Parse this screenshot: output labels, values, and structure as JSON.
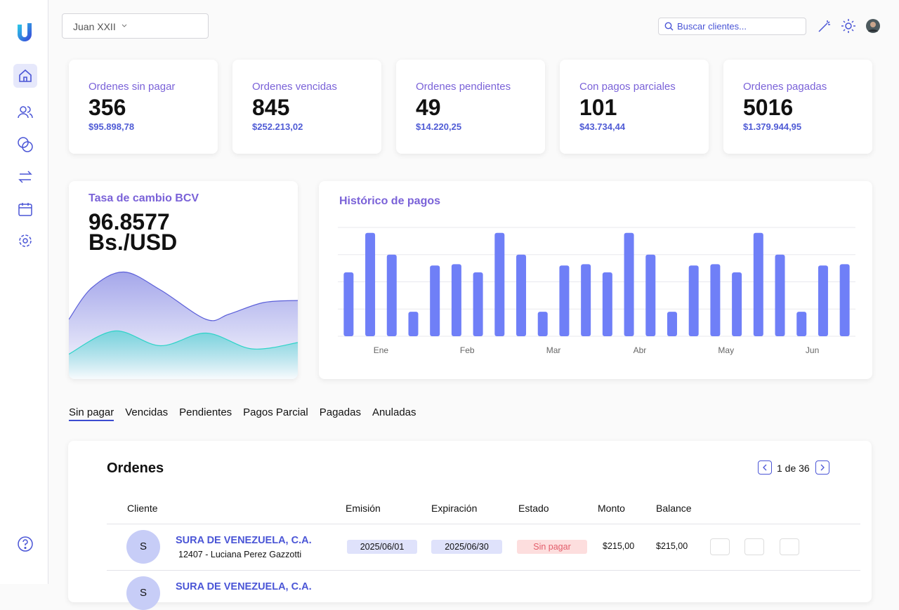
{
  "header": {
    "location": "Juan XXII",
    "search_placeholder": "Buscar clientes..."
  },
  "stats": [
    {
      "label": "Ordenes sin pagar",
      "count": 356,
      "amount": "$95.898,78"
    },
    {
      "label": "Ordenes vencidas",
      "count": 845,
      "amount": "$252.213,02"
    },
    {
      "label": "Ordenes pendientes",
      "count": 49,
      "amount": "$14.220,25"
    },
    {
      "label": "Con pagos parciales",
      "count": 101,
      "amount": "$43.734,44"
    },
    {
      "label": "Ordenes pagadas",
      "count": 5016,
      "amount": "$1.379.944,95"
    }
  ],
  "chart_data": [
    {
      "type": "area",
      "title": "Tasa de cambio BCV",
      "value": "96.8577",
      "unit": "Bs./USD",
      "xlim": [
        0,
        10
      ],
      "ylim": [
        0,
        100
      ],
      "series": [
        {
          "color": "#5b5fd9",
          "x": [
            0,
            1,
            2.4,
            4,
            6,
            7,
            8.5,
            10
          ],
          "values": [
            50,
            80,
            95,
            78,
            50,
            55,
            66,
            68
          ]
        },
        {
          "color": "#2ed3c8",
          "x": [
            0,
            2,
            4,
            6,
            8,
            10
          ],
          "values": [
            17,
            39,
            25,
            37,
            22,
            28
          ]
        }
      ]
    },
    {
      "type": "bar",
      "title": "Histórico de pagos",
      "categories": [
        null,
        "Ene",
        null,
        null,
        null,
        "Feb",
        null,
        null,
        null,
        "Mar",
        null,
        null,
        null,
        "Abr",
        null,
        null,
        null,
        "May",
        null,
        null,
        null,
        "Jun",
        null,
        null
      ],
      "values": [
        2.35,
        3.8,
        3.0,
        0.9,
        2.6,
        2.65,
        2.35,
        3.8,
        3.0,
        0.9,
        2.6,
        2.65,
        2.35,
        3.8,
        3.0,
        0.9,
        2.6,
        2.65,
        2.35,
        3.8,
        3.0,
        0.9,
        2.6,
        2.65
      ],
      "color": "#6f7ff7",
      "ylim": [
        0,
        4
      ],
      "yticks": [
        0,
        1,
        2,
        3,
        4
      ],
      "grid": true
    }
  ],
  "tabs": [
    "Sin pagar",
    "Vencidas",
    "Pendientes",
    "Pagos Parcial",
    "Pagadas",
    "Anuladas"
  ],
  "orders": {
    "title": "Ordenes",
    "pagination": "1 de 36",
    "columns": [
      "Cliente",
      "Emisión",
      "Expiración",
      "Estado",
      "Monto",
      "Balance"
    ],
    "rows": [
      {
        "initial": "S",
        "client": "SURA DE VENEZUELA, C.A.",
        "contact": "12407 - Luciana Perez Gazzotti",
        "issued": "2025/06/01",
        "expires": "2025/06/30",
        "status": "Sin pagar",
        "amount": "$215,00",
        "balance": "$215,00"
      },
      {
        "initial": "S",
        "client": "SURA DE VENEZUELA, C.A."
      }
    ]
  }
}
